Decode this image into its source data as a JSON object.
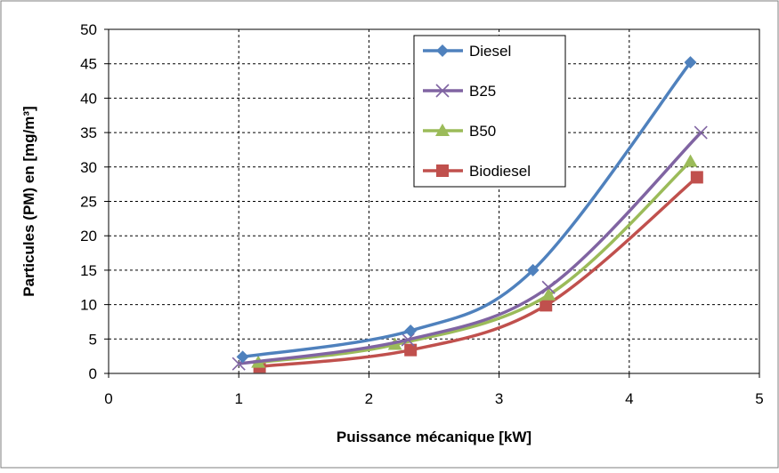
{
  "chart_data": {
    "type": "line",
    "title": "",
    "xlabel": "Puissance mécanique [kW]",
    "ylabel": "Particules (PM) en [mg/m³]",
    "xlim": [
      0,
      5
    ],
    "ylim": [
      0,
      50
    ],
    "x_ticks": [
      "0",
      "1",
      "2",
      "3",
      "4",
      "5"
    ],
    "y_ticks": [
      "0",
      "5",
      "10",
      "15",
      "20",
      "25",
      "30",
      "35",
      "40",
      "45",
      "50"
    ],
    "grid": true,
    "legend_position": "top-right",
    "series": [
      {
        "name": "Diesel",
        "color": "#4F81BD",
        "marker": "diamond",
        "points": [
          [
            1.03,
            2.4
          ],
          [
            2.32,
            6.2
          ],
          [
            3.26,
            15.0
          ],
          [
            4.47,
            45.2
          ]
        ]
      },
      {
        "name": "B25",
        "color": "#8064A2",
        "marker": "x",
        "points": [
          [
            1.0,
            1.4
          ],
          [
            2.3,
            4.9
          ],
          [
            3.38,
            12.5
          ],
          [
            4.55,
            35.0
          ]
        ]
      },
      {
        "name": "B50",
        "color": "#9BBB59",
        "marker": "triangle",
        "points": [
          [
            1.15,
            1.6
          ],
          [
            2.2,
            4.2
          ],
          [
            3.38,
            11.4
          ],
          [
            4.47,
            30.8
          ]
        ]
      },
      {
        "name": "Biodiesel",
        "color": "#C0504D",
        "marker": "square",
        "points": [
          [
            1.16,
            1.0
          ],
          [
            2.32,
            3.4
          ],
          [
            3.36,
            9.9
          ],
          [
            4.52,
            28.5
          ]
        ]
      }
    ]
  }
}
